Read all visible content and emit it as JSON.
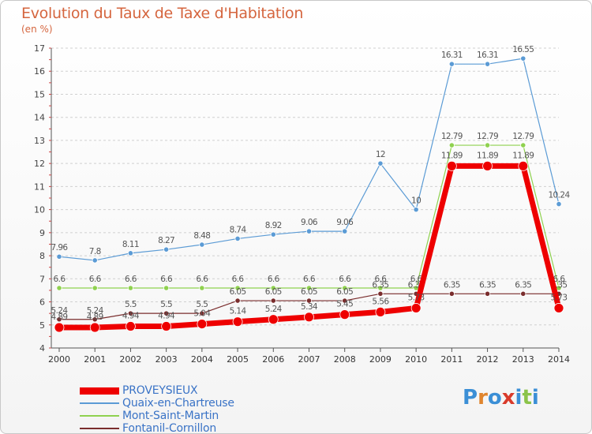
{
  "header": {
    "title": "Evolution du Taux de Taxe d'Habitation",
    "unit": "(en %)"
  },
  "logo": {
    "text": "Proxiti",
    "letter_colors": [
      "#3b8fd6",
      "#e0852e",
      "#3b8fd6",
      "#d93b2b",
      "#3b8fd6",
      "#8bc34a",
      "#3b8fd6"
    ]
  },
  "chart_data": {
    "type": "line",
    "title": "Evolution du Taux de Taxe d'Habitation",
    "ylabel": "(en %)",
    "xlabel": "",
    "ylim": [
      4,
      17
    ],
    "yticks": [
      4,
      5,
      6,
      7,
      8,
      9,
      10,
      11,
      12,
      13,
      14,
      15,
      16,
      17
    ],
    "x": [
      "2000",
      "2001",
      "2002",
      "2003",
      "2004",
      "2005",
      "2006",
      "2007",
      "2008",
      "2009",
      "2010",
      "2011",
      "2012",
      "2013",
      "2014"
    ],
    "grid": "horizontal dashed",
    "legend_position": "bottom-left",
    "series": [
      {
        "name": "Quaix-en-Chartreuse",
        "color": "#5b9bd5",
        "values": [
          7.96,
          7.8,
          8.11,
          8.27,
          8.48,
          8.74,
          8.92,
          9.06,
          9.06,
          12,
          10,
          16.31,
          16.31,
          16.55,
          10.24
        ],
        "labels": [
          "7.96",
          "7.8",
          "8.11",
          "8.27",
          "8.48",
          "8.74",
          "8.92",
          "9.06",
          "9.06",
          "12",
          "10",
          "16.31",
          "16.31",
          "16.55",
          "10.24"
        ]
      },
      {
        "name": "Mont-Saint-Martin",
        "color": "#8fd14f",
        "values": [
          6.6,
          6.6,
          6.6,
          6.6,
          6.6,
          6.6,
          6.6,
          6.6,
          6.6,
          6.6,
          6.6,
          12.79,
          12.79,
          12.79,
          6.6
        ],
        "labels": [
          "6.6",
          "6.6",
          "6.6",
          "6.6",
          "6.6",
          "6.6",
          "6.6",
          "6.6",
          "6.6",
          "6.6",
          "6.6",
          "12.79",
          "12.79",
          "12.79",
          "6.6"
        ]
      },
      {
        "name": "Fontanil-Cornillon",
        "color": "#7a2d2d",
        "values": [
          5.24,
          5.24,
          5.5,
          5.5,
          5.5,
          6.05,
          6.05,
          6.05,
          6.05,
          6.35,
          6.35,
          6.35,
          6.35,
          6.35,
          6.35
        ],
        "labels": [
          "5.24",
          "5.24",
          "5.5",
          "5.5",
          "5.5",
          "6.05",
          "6.05",
          "6.05",
          "6.05",
          "6.35",
          "6.35",
          "6.35",
          "6.35",
          "6.35",
          "6.35"
        ]
      },
      {
        "name": "PROVEYSIEUX",
        "color": "#ee0000",
        "values": [
          4.89,
          4.89,
          4.94,
          4.94,
          5.04,
          5.14,
          5.24,
          5.34,
          5.45,
          5.56,
          5.73,
          11.89,
          11.89,
          11.89,
          5.73
        ],
        "labels": [
          "4.89",
          "4.89",
          "4.94",
          "4.94",
          "5.04",
          "5.14",
          "5.24",
          "5.34",
          "5.45",
          "5.56",
          "5.73",
          "11.89",
          "11.89",
          "11.89",
          "5.73"
        ]
      }
    ],
    "legend_order": [
      "PROVEYSIEUX",
      "Quaix-en-Chartreuse",
      "Mont-Saint-Martin",
      "Fontanil-Cornillon"
    ]
  }
}
